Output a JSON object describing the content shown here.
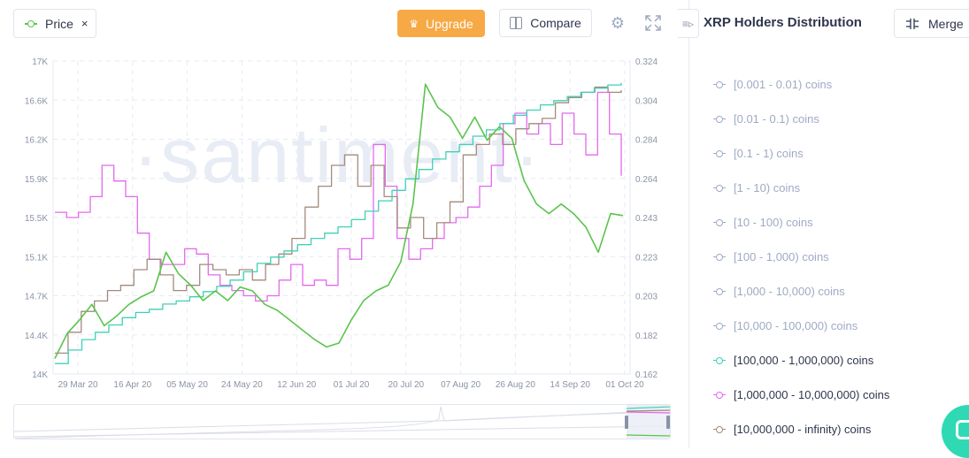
{
  "toolbar": {
    "metric_label": "Price",
    "metric_close": "×",
    "upgrade_label": "Upgrade",
    "compare_label": "Compare"
  },
  "watermark": "·santiment·",
  "sidebar": {
    "title": "XRP Holders Distribution",
    "merge_label": "Merge",
    "collapse_glyph": "≡▹",
    "items": [
      {
        "label": "[0.001 - 0.01) coins",
        "color": "#9faac4",
        "active": false
      },
      {
        "label": "[0.01 - 0.1) coins",
        "color": "#9faac4",
        "active": false
      },
      {
        "label": "[0.1 - 1) coins",
        "color": "#9faac4",
        "active": false
      },
      {
        "label": "[1 - 10) coins",
        "color": "#9faac4",
        "active": false
      },
      {
        "label": "[10 - 100) coins",
        "color": "#9faac4",
        "active": false
      },
      {
        "label": "[100 - 1,000) coins",
        "color": "#9faac4",
        "active": false
      },
      {
        "label": "[1,000 - 10,000) coins",
        "color": "#9faac4",
        "active": false
      },
      {
        "label": "[10,000 - 100,000) coins",
        "color": "#9faac4",
        "active": false
      },
      {
        "label": "[100,000 - 1,000,000) coins",
        "color": "#3ed1b5",
        "active": true
      },
      {
        "label": "[1,000,000 - 10,000,000) coins",
        "color": "#e369ed",
        "active": true
      },
      {
        "label": "[10,000,000 - infinity) coins",
        "color": "#a48a7d",
        "active": true
      }
    ]
  },
  "chart_data": {
    "type": "line",
    "x_ticks": [
      "29 Mar 20",
      "16 Apr 20",
      "05 May 20",
      "24 May 20",
      "12 Jun 20",
      "01 Jul 20",
      "20 Jul 20",
      "07 Aug 20",
      "26 Aug 20",
      "14 Sep 20",
      "01 Oct 20"
    ],
    "y_left_ticks": [
      "14K",
      "14.4K",
      "14.7K",
      "15.1K",
      "15.5K",
      "15.9K",
      "16.2K",
      "16.6K",
      "17K"
    ],
    "y_right_ticks": [
      "0.162",
      "0.182",
      "0.203",
      "0.223",
      "0.243",
      "0.264",
      "0.284",
      "0.304",
      "0.324"
    ],
    "y_left_range": [
      14000,
      17000
    ],
    "y_right_range": [
      0.162,
      0.324
    ],
    "grid": true,
    "series": [
      {
        "name": "Price",
        "axis": "right",
        "color": "#5bc44d",
        "values": [
          0.17,
          0.183,
          0.19,
          0.198,
          0.187,
          0.192,
          0.198,
          0.202,
          0.205,
          0.225,
          0.214,
          0.208,
          0.2,
          0.205,
          0.2,
          0.207,
          0.205,
          0.198,
          0.195,
          0.19,
          0.185,
          0.18,
          0.176,
          0.178,
          0.19,
          0.2,
          0.205,
          0.208,
          0.22,
          0.25,
          0.312,
          0.3,
          0.295,
          0.284,
          0.295,
          0.283,
          0.29,
          0.284,
          0.262,
          0.25,
          0.245,
          0.25,
          0.245,
          0.238,
          0.225,
          0.245,
          0.244
        ]
      },
      {
        "name": "[100,000 - 1,000,000) coins",
        "axis": "left",
        "color": "#3ed1b5",
        "values": [
          14100,
          14230,
          14330,
          14400,
          14470,
          14540,
          14590,
          14620,
          14670,
          14700,
          14740,
          14790,
          14840,
          14900,
          14980,
          15060,
          15120,
          15180,
          15240,
          15300,
          15350,
          15410,
          15480,
          15560,
          15660,
          15760,
          15870,
          15960,
          16060,
          16130,
          16200,
          16280,
          16340,
          16400,
          16480,
          16530,
          16580,
          16620,
          16660,
          16700,
          16740,
          16770,
          16790
        ]
      },
      {
        "name": "[1,000,000 - 10,000,000) coins",
        "axis": "left",
        "color": "#e369ed",
        "values": [
          15550,
          15500,
          15550,
          15700,
          16000,
          15850,
          15700,
          15350,
          15100,
          15050,
          15050,
          15200,
          15150,
          14950,
          14850,
          14800,
          14750,
          14700,
          14750,
          14900,
          15050,
          14850,
          14900,
          14850,
          15200,
          15100,
          15300,
          16200,
          15800,
          15300,
          15100,
          15200,
          15300,
          15450,
          15500,
          15600,
          15800,
          16000,
          16400,
          16500,
          16300,
          16400,
          16200,
          16500,
          16300,
          16100,
          16700,
          16300,
          15900
        ]
      },
      {
        "name": "[10,000,000 - infinity) coins",
        "axis": "left",
        "color": "#a48a7d",
        "values": [
          14200,
          14400,
          14600,
          14700,
          14800,
          14850,
          15000,
          15100,
          14950,
          14800,
          14850,
          15050,
          15000,
          14950,
          15000,
          14900,
          15050,
          15150,
          15300,
          15600,
          15800,
          16000,
          16100,
          15800,
          16000,
          15700,
          15400,
          15500,
          15300,
          15450,
          15650,
          16100,
          16200,
          16300,
          16200,
          16350,
          16400,
          16450,
          16600,
          16650,
          16700,
          16750,
          16700,
          16720
        ]
      }
    ]
  }
}
